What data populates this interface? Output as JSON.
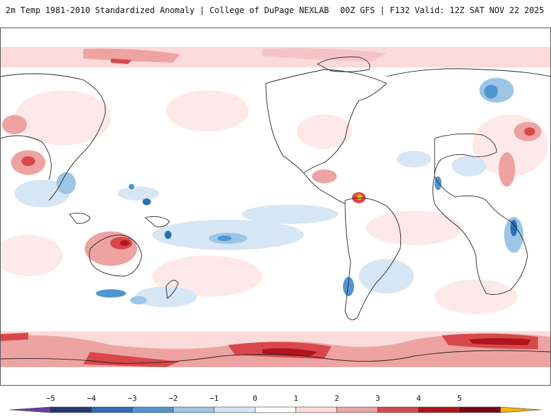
{
  "header": {
    "left": "2m Temp 1981-2010 Standardized Anomaly | College of DuPage NEXLAB",
    "right": "00Z GFS | F132 Valid: 12Z SAT NOV 22 2025"
  },
  "map": {
    "variable": "2m Temp Standardized Anomaly",
    "projection": "global cylindrical",
    "warm_regions": [
      "Antarctica coast",
      "Arctic / northern Siberia",
      "Australia interior",
      "India",
      "Eastern Europe / Caspian",
      "northern Venezuela"
    ],
    "cool_regions": [
      "tropical western Pacific",
      "Scandinavia",
      "East Africa",
      "southern Chile",
      "Southern Ocean"
    ]
  },
  "colorbar": {
    "labels": [
      "−5",
      "−4",
      "−3",
      "−2",
      "−1",
      "0",
      "1",
      "2",
      "3",
      "4",
      "5"
    ],
    "colors": [
      "#6f3fa0",
      "#1f3a7a",
      "#2b6fb8",
      "#4f95d1",
      "#9cc5e6",
      "#d6e6f4",
      "#ffffff",
      "#fbdada",
      "#eea3a3",
      "#d8484a",
      "#b0141c",
      "#7a0010",
      "#f4b400"
    ]
  }
}
